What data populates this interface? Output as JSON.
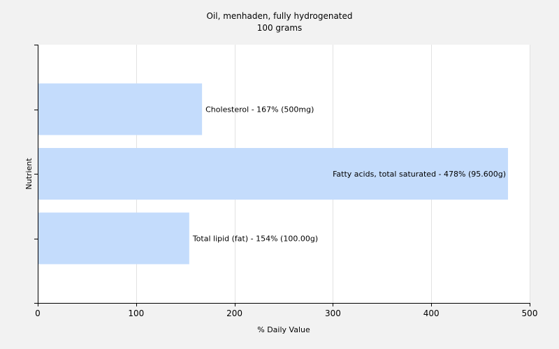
{
  "chart_data": {
    "type": "bar",
    "orientation": "horizontal",
    "title": "Oil, menhaden, fully hydrogenated",
    "subtitle": "100 grams",
    "xlabel": "% Daily Value",
    "ylabel": "Nutrient",
    "xlim": [
      0,
      500
    ],
    "xticks": [
      0,
      100,
      200,
      300,
      400,
      500
    ],
    "grid": true,
    "bar_color": "#c4dcfc",
    "categories": [
      "Cholesterol",
      "Fatty acids, total saturated",
      "Total lipid (fat)"
    ],
    "values": [
      167,
      478,
      154
    ],
    "labels": [
      "Cholesterol - 167% (500mg)",
      "Fatty acids, total saturated - 478% (95.600g)",
      "Total lipid (fat) - 154% (100.00g)"
    ]
  }
}
